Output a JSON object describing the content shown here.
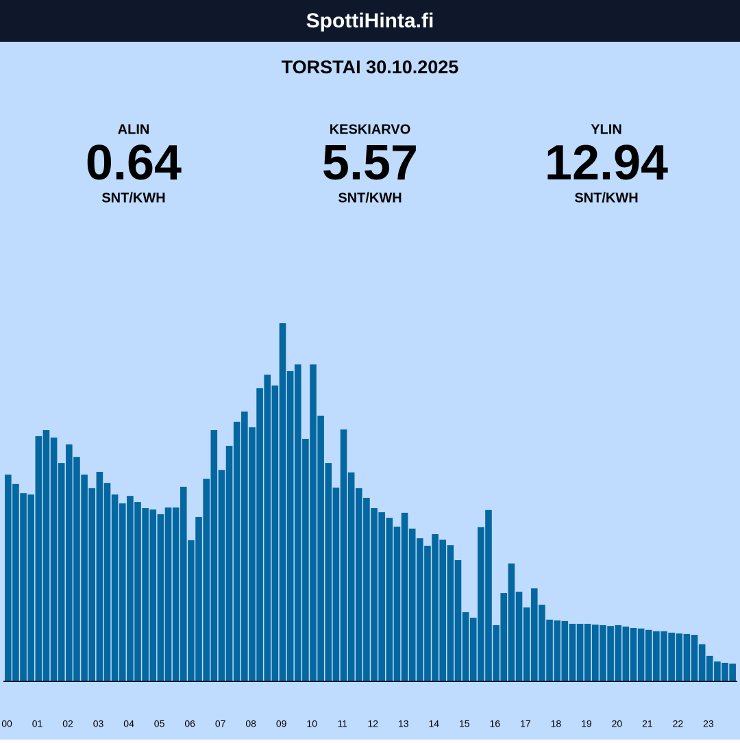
{
  "header": {
    "title": "SpottiHinta.fi"
  },
  "chart_data": {
    "type": "bar",
    "title": "TORSTAI 30.10.2025",
    "stats": [
      {
        "label": "ALIN",
        "value": 0.64,
        "unit": "SNT/KWH"
      },
      {
        "label": "KESKIARVO",
        "value": 5.57,
        "unit": "SNT/KWH"
      },
      {
        "label": "YLIN",
        "value": 12.94,
        "unit": "SNT/KWH"
      }
    ],
    "color": "#05679f",
    "categories": [
      "00",
      null,
      null,
      null,
      "01",
      null,
      null,
      null,
      "02",
      null,
      null,
      null,
      "03",
      null,
      null,
      null,
      "04",
      null,
      null,
      null,
      "05",
      null,
      null,
      null,
      "06",
      null,
      null,
      null,
      "07",
      null,
      null,
      null,
      "08",
      null,
      null,
      null,
      "09",
      null,
      null,
      null,
      "10",
      null,
      null,
      null,
      "11",
      null,
      null,
      null,
      "12",
      null,
      null,
      null,
      "13",
      null,
      null,
      null,
      "14",
      null,
      null,
      null,
      "15",
      null,
      null,
      null,
      "16",
      null,
      null,
      null,
      "17",
      null,
      null,
      null,
      "18",
      null,
      null,
      null,
      "19",
      null,
      null,
      null,
      "20",
      null,
      null,
      null,
      "21",
      null,
      null,
      null,
      "22",
      null,
      null,
      null,
      "23",
      null,
      null,
      null
    ],
    "values": [
      7.47,
      7.13,
      6.8,
      6.75,
      8.86,
      9.08,
      8.81,
      7.89,
      8.56,
      8.11,
      7.47,
      6.98,
      7.57,
      7.17,
      6.75,
      6.43,
      6.7,
      6.48,
      6.26,
      6.21,
      6.04,
      6.28,
      6.28,
      7.03,
      5.1,
      5.94,
      7.32,
      9.08,
      7.64,
      8.51,
      9.38,
      9.75,
      9.18,
      10.59,
      11.08,
      10.69,
      12.94,
      11.21,
      11.45,
      8.76,
      11.45,
      9.6,
      7.89,
      7.0,
      9.1,
      7.55,
      6.98,
      6.63,
      6.26,
      6.11,
      5.91,
      5.59,
      6.09,
      5.52,
      5.17,
      4.9,
      5.32,
      5.12,
      4.92,
      4.38,
      2.5,
      2.3,
      5.57,
      6.19,
      2.03,
      3.19,
      4.26,
      3.24,
      2.67,
      3.36,
      2.77,
      2.23,
      2.2,
      2.18,
      2.08,
      2.08,
      2.08,
      2.05,
      2.03,
      2.0,
      2.03,
      1.98,
      1.93,
      1.91,
      1.86,
      1.81,
      1.81,
      1.76,
      1.73,
      1.71,
      1.68,
      1.34,
      0.92,
      0.72,
      0.67,
      0.64
    ]
  }
}
